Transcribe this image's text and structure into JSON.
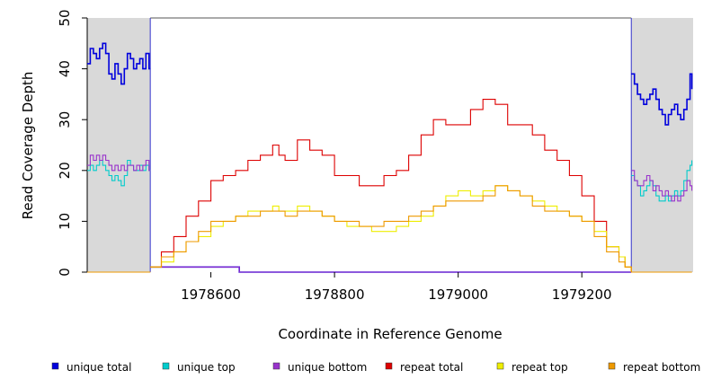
{
  "chart_data": {
    "type": "line",
    "xlabel": "Coordinate in Reference Genome",
    "ylabel": "Read Coverage Depth",
    "xlim": [
      1978400,
      1979380
    ],
    "ylim": [
      0,
      50
    ],
    "x_ticks": [
      1978600,
      1978800,
      1979000,
      1979200
    ],
    "y_ticks": [
      0,
      10,
      20,
      30,
      40,
      50
    ],
    "shaded_regions": [
      [
        1978400,
        1978502
      ],
      [
        1979280,
        1979380
      ]
    ],
    "flank_box": {
      "x": [
        1978502,
        1979280
      ],
      "y": [
        0,
        50
      ]
    },
    "legend_position": "bottom",
    "series": [
      {
        "name": "unique total",
        "color": "#0000dd",
        "segments": [
          {
            "x": [
              1978400,
              1978405,
              1978410,
              1978415,
              1978420,
              1978425,
              1978430,
              1978435,
              1978440,
              1978445,
              1978450,
              1978455,
              1978460,
              1978465,
              1978470,
              1978475,
              1978480,
              1978485,
              1978490,
              1978495,
              1978500,
              1978502
            ],
            "y": [
              41,
              44,
              43,
              42,
              44,
              45,
              43,
              39,
              38,
              41,
              39,
              37,
              40,
              43,
              42,
              40,
              41,
              42,
              40,
              43,
              40,
              40
            ]
          },
          {
            "x": [
              1978502,
              1978600,
              1978645,
              1978646,
              1979280
            ],
            "y": [
              1,
              1,
              1,
              0,
              0
            ]
          },
          {
            "x": [
              1979280,
              1979285,
              1979290,
              1979295,
              1979300,
              1979305,
              1979310,
              1979315,
              1979320,
              1979325,
              1979330,
              1979335,
              1979340,
              1979345,
              1979350,
              1979355,
              1979360,
              1979365,
              1979370,
              1979375,
              1979378
            ],
            "y": [
              39,
              37,
              35,
              34,
              33,
              34,
              35,
              36,
              34,
              32,
              31,
              29,
              31,
              32,
              33,
              31,
              30,
              32,
              34,
              39,
              36
            ]
          }
        ]
      },
      {
        "name": "unique top",
        "color": "#00cccc",
        "segments": [
          {
            "x": [
              1978400,
              1978405,
              1978410,
              1978415,
              1978420,
              1978425,
              1978430,
              1978435,
              1978440,
              1978445,
              1978450,
              1978455,
              1978460,
              1978465,
              1978470,
              1978475,
              1978480,
              1978485,
              1978490,
              1978495,
              1978500,
              1978502
            ],
            "y": [
              20,
              21,
              20,
              21,
              22,
              21,
              20,
              19,
              18,
              19,
              18,
              17,
              19,
              22,
              21,
              20,
              20,
              21,
              20,
              21,
              20,
              20
            ]
          },
          {
            "x": [
              1979280,
              1979285,
              1979290,
              1979295,
              1979300,
              1979305,
              1979310,
              1979315,
              1979320,
              1979325,
              1979330,
              1979335,
              1979340,
              1979345,
              1979350,
              1979355,
              1979360,
              1979365,
              1979370,
              1979375,
              1979378
            ],
            "y": [
              19,
              18,
              17,
              15,
              16,
              17,
              18,
              17,
              15,
              14,
              14,
              15,
              14,
              15,
              16,
              15,
              16,
              18,
              20,
              21,
              22
            ]
          }
        ]
      },
      {
        "name": "unique bottom",
        "color": "#9933cc",
        "segments": [
          {
            "x": [
              1978400,
              1978405,
              1978410,
              1978415,
              1978420,
              1978425,
              1978430,
              1978435,
              1978440,
              1978445,
              1978450,
              1978455,
              1978460,
              1978465,
              1978470,
              1978475,
              1978480,
              1978485,
              1978490,
              1978495,
              1978500,
              1978502
            ],
            "y": [
              21,
              23,
              22,
              23,
              22,
              23,
              22,
              21,
              20,
              21,
              20,
              21,
              20,
              21,
              21,
              20,
              21,
              20,
              21,
              22,
              20,
              20
            ]
          },
          {
            "x": [
              1978502,
              1978600,
              1978645,
              1978646,
              1979280
            ],
            "y": [
              1,
              1,
              1,
              0,
              0
            ]
          },
          {
            "x": [
              1979280,
              1979285,
              1979290,
              1979295,
              1979300,
              1979305,
              1979310,
              1979315,
              1979320,
              1979325,
              1979330,
              1979335,
              1979340,
              1979345,
              1979350,
              1979355,
              1979360,
              1979365,
              1979370,
              1979375,
              1979378
            ],
            "y": [
              20,
              18,
              17,
              17,
              18,
              19,
              18,
              16,
              17,
              16,
              15,
              16,
              15,
              14,
              15,
              14,
              15,
              16,
              18,
              17,
              16
            ]
          }
        ]
      },
      {
        "name": "repeat total",
        "color": "#dd0000",
        "segments": [
          {
            "x": [
              1978400,
              1978502
            ],
            "y": [
              0,
              0
            ]
          },
          {
            "x": [
              1978502,
              1978520,
              1978540,
              1978560,
              1978580,
              1978600,
              1978620,
              1978640,
              1978660,
              1978680,
              1978700,
              1978710,
              1978720,
              1978740,
              1978760,
              1978780,
              1978800,
              1978820,
              1978840,
              1978860,
              1978880,
              1978900,
              1978920,
              1978940,
              1978960,
              1978980,
              1979000,
              1979020,
              1979040,
              1979060,
              1979080,
              1979100,
              1979120,
              1979140,
              1979160,
              1979180,
              1979200,
              1979220,
              1979240,
              1979260,
              1979270,
              1979280
            ],
            "y": [
              1,
              4,
              7,
              11,
              14,
              18,
              19,
              20,
              22,
              23,
              25,
              23,
              22,
              26,
              24,
              23,
              19,
              19,
              17,
              17,
              19,
              20,
              23,
              27,
              30,
              29,
              29,
              32,
              34,
              33,
              29,
              29,
              27,
              24,
              22,
              19,
              15,
              10,
              5,
              3,
              1,
              0
            ]
          },
          {
            "x": [
              1979280,
              1979378
            ],
            "y": [
              0,
              0
            ]
          }
        ]
      },
      {
        "name": "repeat top",
        "color": "#eeee00",
        "segments": [
          {
            "x": [
              1978400,
              1978502
            ],
            "y": [
              0,
              0
            ]
          },
          {
            "x": [
              1978502,
              1978520,
              1978540,
              1978560,
              1978580,
              1978600,
              1978620,
              1978640,
              1978660,
              1978680,
              1978700,
              1978710,
              1978720,
              1978740,
              1978760,
              1978780,
              1978800,
              1978820,
              1978840,
              1978860,
              1978880,
              1978900,
              1978920,
              1978940,
              1978960,
              1978980,
              1979000,
              1979020,
              1979040,
              1979060,
              1979080,
              1979100,
              1979120,
              1979140,
              1979160,
              1979180,
              1979200,
              1979220,
              1979240,
              1979260,
              1979270,
              1979280
            ],
            "y": [
              1,
              2,
              4,
              6,
              7,
              9,
              10,
              11,
              12,
              12,
              13,
              12,
              12,
              13,
              12,
              11,
              10,
              9,
              9,
              8,
              8,
              9,
              10,
              11,
              13,
              15,
              16,
              15,
              16,
              17,
              16,
              15,
              14,
              13,
              12,
              11,
              10,
              8,
              5,
              3,
              1,
              0
            ]
          },
          {
            "x": [
              1979280,
              1979378
            ],
            "y": [
              0,
              0
            ]
          }
        ]
      },
      {
        "name": "repeat bottom",
        "color": "#ee9900",
        "segments": [
          {
            "x": [
              1978400,
              1978502
            ],
            "y": [
              0,
              0
            ]
          },
          {
            "x": [
              1978502,
              1978520,
              1978540,
              1978560,
              1978580,
              1978600,
              1978620,
              1978640,
              1978660,
              1978680,
              1978700,
              1978710,
              1978720,
              1978740,
              1978760,
              1978780,
              1978800,
              1978820,
              1978840,
              1978860,
              1978880,
              1978900,
              1978920,
              1978940,
              1978960,
              1978980,
              1979000,
              1979020,
              1979040,
              1979060,
              1979080,
              1979100,
              1979120,
              1979140,
              1979160,
              1979180,
              1979200,
              1979220,
              1979240,
              1979260,
              1979270,
              1979280
            ],
            "y": [
              1,
              3,
              4,
              6,
              8,
              10,
              10,
              11,
              11,
              12,
              12,
              12,
              11,
              12,
              12,
              11,
              10,
              10,
              9,
              9,
              10,
              10,
              11,
              12,
              13,
              14,
              14,
              14,
              15,
              17,
              16,
              15,
              13,
              12,
              12,
              11,
              10,
              7,
              4,
              2,
              1,
              0
            ]
          },
          {
            "x": [
              1979280,
              1979378
            ],
            "y": [
              0,
              0
            ]
          }
        ]
      }
    ]
  }
}
